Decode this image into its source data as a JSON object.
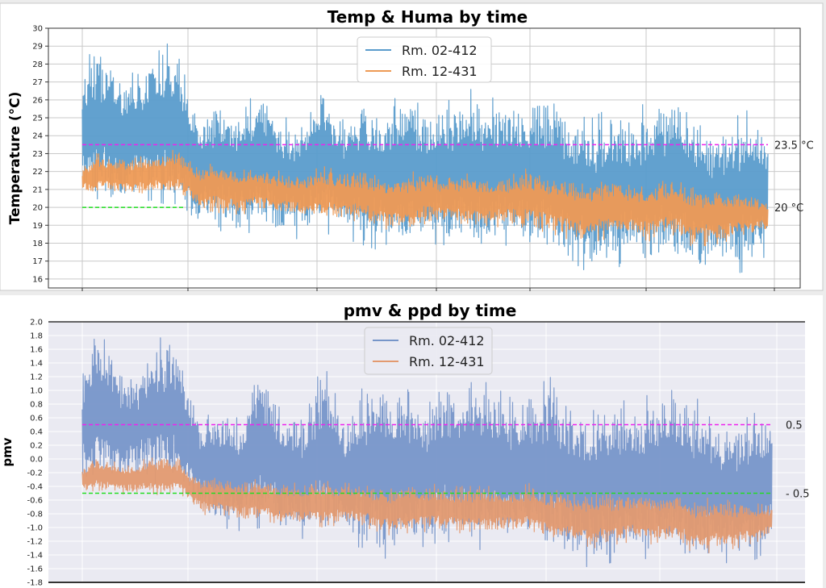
{
  "chart_data": [
    {
      "type": "line",
      "title": "Temp & Huma by time",
      "xlabel": "",
      "ylabel": "Temperature (°C)",
      "ylim": [
        15.5,
        30.0
      ],
      "yticks": [
        16,
        17,
        18,
        19,
        20,
        21,
        22,
        23,
        24,
        25,
        26,
        27,
        28,
        29,
        30
      ],
      "grid": true,
      "legend_position": "top-center",
      "x_extent": [
        0.0,
        1.0
      ],
      "series": [
        {
          "name": "Rm. 02-412",
          "color": "#5a9ccc",
          "x": [
            0.0,
            0.02,
            0.04,
            0.06,
            0.08,
            0.1,
            0.12,
            0.14,
            0.155,
            0.17,
            0.2,
            0.23,
            0.26,
            0.29,
            0.32,
            0.35,
            0.38,
            0.41,
            0.44,
            0.47,
            0.5,
            0.53,
            0.56,
            0.59,
            0.62,
            0.65,
            0.68,
            0.71,
            0.74,
            0.77,
            0.8,
            0.83,
            0.86,
            0.89,
            0.92,
            0.95,
            0.98,
            1.0
          ],
          "low": [
            20.5,
            20.5,
            20.2,
            20.0,
            20.3,
            20.4,
            20.2,
            20.0,
            19.8,
            19.0,
            18.7,
            18.5,
            18.7,
            18.4,
            18.2,
            18.6,
            18.3,
            17.9,
            17.5,
            17.2,
            18.0,
            17.9,
            17.5,
            17.6,
            17.9,
            17.5,
            17.0,
            16.8,
            16.4,
            16.6,
            16.8,
            16.3,
            16.6,
            16.2,
            16.5,
            16.3,
            16.5,
            17.5
          ],
          "high": [
            28.0,
            29.0,
            28.6,
            27.3,
            27.6,
            28.9,
            29.3,
            28.4,
            27.0,
            25.0,
            26.1,
            24.9,
            27.3,
            25.0,
            25.0,
            27.3,
            24.9,
            26.3,
            25.6,
            26.6,
            25.4,
            25.9,
            26.7,
            26.2,
            25.9,
            26.2,
            26.9,
            25.4,
            24.9,
            25.6,
            25.1,
            26.2,
            26.7,
            26.0,
            24.1,
            25.0,
            25.6,
            24.0
          ]
        },
        {
          "name": "Rm. 12-431",
          "color": "#ee9a55",
          "x": [
            0.0,
            0.02,
            0.04,
            0.06,
            0.08,
            0.1,
            0.12,
            0.14,
            0.155,
            0.17,
            0.2,
            0.23,
            0.26,
            0.29,
            0.32,
            0.35,
            0.38,
            0.41,
            0.44,
            0.47,
            0.5,
            0.53,
            0.56,
            0.59,
            0.62,
            0.65,
            0.68,
            0.71,
            0.74,
            0.77,
            0.8,
            0.83,
            0.86,
            0.89,
            0.92,
            0.95,
            0.98,
            1.0
          ],
          "low": [
            20.8,
            20.8,
            20.7,
            20.7,
            20.8,
            20.8,
            20.7,
            20.6,
            20.4,
            19.9,
            19.7,
            19.6,
            19.8,
            19.6,
            19.4,
            19.3,
            19.3,
            19.2,
            18.8,
            18.6,
            19.0,
            19.0,
            18.9,
            18.8,
            19.0,
            18.8,
            18.6,
            18.2,
            18.0,
            18.3,
            18.4,
            18.1,
            18.5,
            17.8,
            17.9,
            18.2,
            18.4,
            18.6
          ],
          "high": [
            22.3,
            23.0,
            22.9,
            22.7,
            22.8,
            22.9,
            23.0,
            23.4,
            22.9,
            22.3,
            22.5,
            22.2,
            22.3,
            22.0,
            21.8,
            22.3,
            22.0,
            21.9,
            21.7,
            21.9,
            22.1,
            21.9,
            22.0,
            21.8,
            21.7,
            22.2,
            21.8,
            21.5,
            21.5,
            21.6,
            21.4,
            21.4,
            21.6,
            21.1,
            21.2,
            20.9,
            20.8,
            20.5
          ]
        }
      ],
      "reference_lines": [
        {
          "y": 23.5,
          "label": "23.5 °C",
          "color": "#ee22ee",
          "style": "dashed"
        },
        {
          "y": 20.0,
          "label": "20 °C",
          "color": "#22dd22",
          "style": "dashed"
        }
      ]
    },
    {
      "type": "line",
      "title": "pmv & ppd by time",
      "xlabel": "",
      "ylabel": "pmv",
      "ylim": [
        -1.8,
        2.0
      ],
      "yticks": [
        -1.8,
        -1.6,
        -1.4,
        -1.2,
        -1.0,
        -0.8,
        -0.6,
        -0.4,
        -0.2,
        0.0,
        0.2,
        0.4,
        0.6,
        0.8,
        1.0,
        1.2,
        1.4,
        1.6,
        1.8,
        2.0
      ],
      "ytick_labels": [
        "-1.8",
        "-1.6",
        "-1.4",
        "-1.2",
        "-1.0",
        "-0.8",
        "-0.6",
        "-0.4",
        "-0.2",
        "0.0",
        "0.2",
        "0.4",
        "0.6",
        "0.8",
        "1.0",
        "1.2",
        "1.4",
        "1.6",
        "1.8",
        "2.0"
      ],
      "grid": true,
      "legend_position": "top-center",
      "x_extent": [
        0.0,
        1.0
      ],
      "series": [
        {
          "name": "Rm. 02-412",
          "color": "#7796c9",
          "x": [
            0.0,
            0.02,
            0.04,
            0.06,
            0.08,
            0.1,
            0.12,
            0.14,
            0.155,
            0.17,
            0.2,
            0.23,
            0.26,
            0.29,
            0.32,
            0.35,
            0.38,
            0.41,
            0.44,
            0.47,
            0.5,
            0.53,
            0.56,
            0.59,
            0.62,
            0.65,
            0.68,
            0.71,
            0.74,
            0.77,
            0.8,
            0.83,
            0.86,
            0.89,
            0.92,
            0.95,
            0.98,
            1.0
          ],
          "low": [
            -0.4,
            -0.35,
            -0.35,
            -0.4,
            -0.35,
            -0.35,
            -0.4,
            -0.45,
            -0.55,
            -0.8,
            -1.0,
            -1.05,
            -1.0,
            -1.1,
            -1.2,
            -1.1,
            -1.2,
            -1.35,
            -1.45,
            -1.4,
            -1.25,
            -1.2,
            -1.35,
            -1.3,
            -1.2,
            -1.3,
            -1.4,
            -1.5,
            -1.6,
            -1.5,
            -1.4,
            -1.5,
            -1.45,
            -1.6,
            -1.5,
            -1.55,
            -1.45,
            -1.2
          ],
          "high": [
            1.4,
            1.8,
            1.7,
            1.2,
            1.3,
            1.7,
            1.8,
            1.6,
            1.1,
            0.6,
            0.8,
            0.55,
            1.4,
            0.8,
            0.7,
            1.4,
            0.6,
            1.1,
            1.1,
            1.2,
            0.8,
            1.1,
            1.2,
            1.1,
            0.9,
            1.0,
            1.2,
            0.8,
            0.7,
            0.9,
            0.8,
            1.0,
            1.0,
            0.9,
            0.5,
            0.6,
            0.7,
            0.6
          ]
        },
        {
          "name": "Rm. 12-431",
          "color": "#e39a70",
          "x": [
            0.0,
            0.02,
            0.04,
            0.06,
            0.08,
            0.1,
            0.12,
            0.14,
            0.155,
            0.17,
            0.2,
            0.23,
            0.26,
            0.29,
            0.32,
            0.35,
            0.38,
            0.41,
            0.44,
            0.47,
            0.5,
            0.53,
            0.56,
            0.59,
            0.62,
            0.65,
            0.68,
            0.71,
            0.74,
            0.77,
            0.8,
            0.83,
            0.86,
            0.89,
            0.92,
            0.95,
            0.98,
            1.0
          ],
          "low": [
            -0.5,
            -0.5,
            -0.5,
            -0.55,
            -0.5,
            -0.5,
            -0.55,
            -0.5,
            -0.6,
            -0.8,
            -0.85,
            -0.9,
            -0.9,
            -0.95,
            -0.95,
            -1.0,
            -0.95,
            -1.0,
            -1.1,
            -1.15,
            -1.05,
            -1.05,
            -1.1,
            -1.1,
            -1.05,
            -1.1,
            -1.2,
            -1.2,
            -1.3,
            -1.25,
            -1.2,
            -1.25,
            -1.2,
            -1.4,
            -1.35,
            -1.3,
            -1.2,
            -1.1
          ],
          "high": [
            -0.1,
            0.05,
            0.0,
            -0.05,
            -0.05,
            0.05,
            0.05,
            0.0,
            -0.2,
            -0.25,
            -0.25,
            -0.3,
            -0.3,
            -0.35,
            -0.35,
            -0.3,
            -0.35,
            -0.35,
            -0.4,
            -0.35,
            -0.35,
            -0.4,
            -0.4,
            -0.4,
            -0.45,
            -0.35,
            -0.45,
            -0.5,
            -0.5,
            -0.5,
            -0.5,
            -0.5,
            -0.5,
            -0.6,
            -0.55,
            -0.6,
            -0.65,
            -0.7
          ]
        }
      ],
      "reference_lines": [
        {
          "y": 0.5,
          "label": "0.5",
          "color": "#ee22ee",
          "style": "dashed"
        },
        {
          "y": -0.5,
          "label": "- 0.5",
          "color": "#22dd22",
          "style": "dashed"
        }
      ]
    }
  ]
}
